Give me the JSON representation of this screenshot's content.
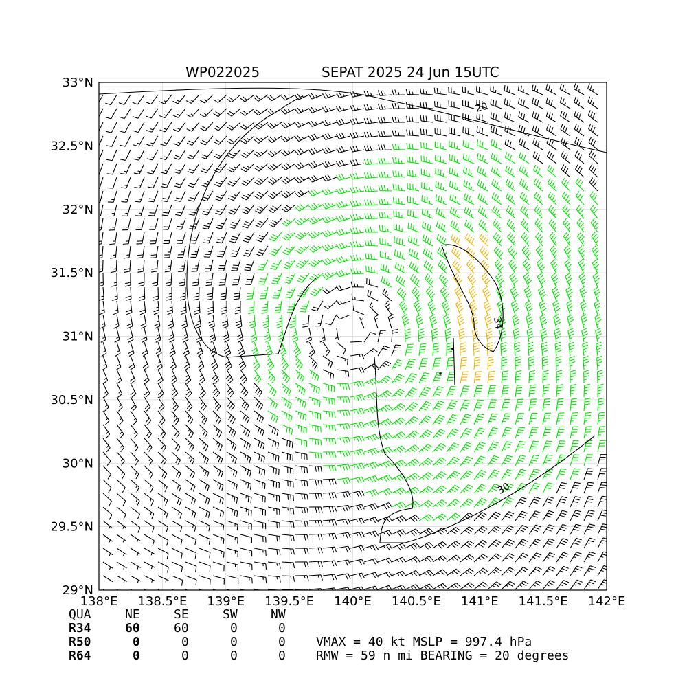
{
  "title": {
    "storm_id": "WP022025",
    "storm_label": "SEPAT 2025 24 Jun 15UTC"
  },
  "map": {
    "lon_range": [
      138,
      142
    ],
    "lat_range": [
      29,
      33
    ],
    "lon_ticks": [
      {
        "value": 138.0,
        "label": "138°E"
      },
      {
        "value": 138.5,
        "label": "138.5°E"
      },
      {
        "value": 139.0,
        "label": "139°E"
      },
      {
        "value": 139.5,
        "label": "139.5°E"
      },
      {
        "value": 140.0,
        "label": "140°E"
      },
      {
        "value": 140.5,
        "label": "140.5°E"
      },
      {
        "value": 141.0,
        "label": "141°E"
      },
      {
        "value": 141.5,
        "label": "141.5°E"
      },
      {
        "value": 142.0,
        "label": "142°E"
      }
    ],
    "lat_ticks": [
      {
        "value": 33.0,
        "label": "33°N"
      },
      {
        "value": 32.5,
        "label": "32.5°N"
      },
      {
        "value": 32.0,
        "label": "32°N"
      },
      {
        "value": 31.5,
        "label": "31.5°N"
      },
      {
        "value": 31.0,
        "label": "31°N"
      },
      {
        "value": 30.5,
        "label": "30.5°N"
      },
      {
        "value": 30.0,
        "label": "30°N"
      },
      {
        "value": 29.5,
        "label": "29.5°N"
      },
      {
        "value": 29.0,
        "label": "29°N"
      }
    ],
    "grid": true,
    "storm_center": {
      "lon": 140.0,
      "lat": 31.05
    },
    "wind_colors": {
      "below_34kt": "#000000",
      "gale_34kt": "#00e600",
      "storm_50kt": "#f0b400"
    },
    "contour_labels": [
      {
        "text": "20",
        "lon": 141.02,
        "lat": 32.78,
        "rotate": -15
      },
      {
        "text": "34",
        "lon": 141.12,
        "lat": 31.1,
        "rotate": 80
      },
      {
        "text": "30",
        "lon": 141.2,
        "lat": 29.78,
        "rotate": -30
      }
    ]
  },
  "table": {
    "header": [
      "QUA",
      "NE",
      "SE",
      "SW",
      "NW"
    ],
    "rows": [
      [
        "R34",
        "60",
        "60",
        "0",
        "0"
      ],
      [
        "R50",
        "0",
        "0",
        "0",
        "0"
      ],
      [
        "R64",
        "0",
        "0",
        "0",
        "0"
      ]
    ],
    "vmax_line": "VMAX =  40 kt MSLP = 997.4 hPa",
    "rmw_line": "RMW =  59 n mi BEARING =  20 degrees"
  }
}
